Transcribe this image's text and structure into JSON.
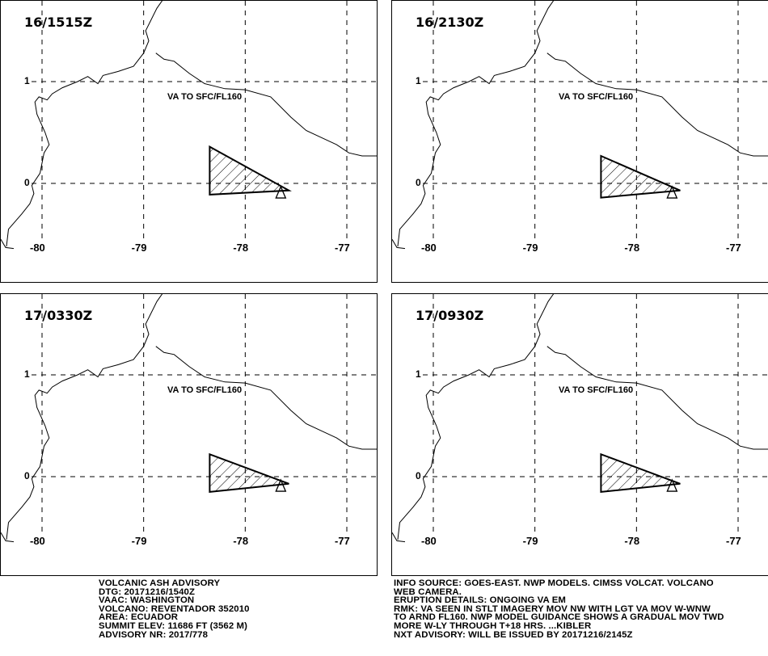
{
  "panels": [
    {
      "time": "16/1515Z",
      "va_label": "VA TO SFC/FL160",
      "polygon": [
        [
          -78.35,
          0.36
        ],
        [
          -77.57,
          -0.07
        ],
        [
          -78.35,
          -0.11
        ]
      ]
    },
    {
      "time": "16/2130Z",
      "va_label": "VA TO SFC/FL160",
      "polygon": [
        [
          -78.35,
          0.27
        ],
        [
          -77.57,
          -0.07
        ],
        [
          -78.35,
          -0.14
        ]
      ]
    },
    {
      "time": "17/0330Z",
      "va_label": "VA TO SFC/FL160",
      "polygon": [
        [
          -78.35,
          0.22
        ],
        [
          -77.57,
          -0.07
        ],
        [
          -78.35,
          -0.15
        ]
      ]
    },
    {
      "time": "17/0930Z",
      "va_label": "VA TO SFC/FL160",
      "polygon": [
        [
          -78.35,
          0.22
        ],
        [
          -77.57,
          -0.07
        ],
        [
          -78.35,
          -0.15
        ]
      ]
    }
  ],
  "map": {
    "lon_ticks": [
      "-80",
      "-79",
      "-78",
      "-77"
    ],
    "lat_ticks": [
      "1",
      "0"
    ],
    "volcano": {
      "lon": -77.65,
      "lat": -0.08
    },
    "coastline": [
      [
        -80.35,
        -0.62
      ],
      [
        -80.33,
        -0.45
      ],
      [
        -80.2,
        -0.3
      ],
      [
        -80.12,
        -0.2
      ],
      [
        -80.08,
        -0.1
      ],
      [
        -80.1,
        -0.02
      ],
      [
        -80.02,
        0.1
      ],
      [
        -79.98,
        0.3
      ],
      [
        -79.93,
        0.38
      ],
      [
        -79.97,
        0.5
      ],
      [
        -80.05,
        0.68
      ],
      [
        -80.07,
        0.8
      ],
      [
        -80.03,
        0.85
      ],
      [
        -79.95,
        0.82
      ],
      [
        -79.9,
        0.88
      ],
      [
        -79.8,
        0.94
      ],
      [
        -79.65,
        1.0
      ],
      [
        -79.55,
        1.05
      ],
      [
        -79.45,
        0.98
      ],
      [
        -79.4,
        1.06
      ],
      [
        -79.25,
        1.1
      ],
      [
        -79.1,
        1.15
      ],
      [
        -79.0,
        1.28
      ],
      [
        -78.95,
        1.4
      ],
      [
        -78.98,
        1.5
      ],
      [
        -78.93,
        1.6
      ],
      [
        -78.87,
        1.72
      ],
      [
        -78.8,
        1.82
      ],
      [
        -78.82,
        1.98
      ]
    ],
    "border": [
      [
        -78.88,
        1.28
      ],
      [
        -78.8,
        1.22
      ],
      [
        -78.7,
        1.2
      ],
      [
        -78.55,
        1.08
      ],
      [
        -78.4,
        0.98
      ],
      [
        -78.2,
        0.93
      ],
      [
        -78.0,
        0.92
      ],
      [
        -77.75,
        0.85
      ],
      [
        -77.55,
        0.65
      ],
      [
        -77.4,
        0.52
      ],
      [
        -77.25,
        0.45
      ],
      [
        -77.1,
        0.38
      ],
      [
        -76.98,
        0.3
      ],
      [
        -76.85,
        0.27
      ],
      [
        -76.7,
        0.27
      ],
      [
        -76.55,
        0.3
      ],
      [
        -76.36,
        0.29
      ]
    ]
  },
  "advisory": {
    "left": [
      "VOLCANIC ASH ADVISORY",
      "DTG: 20171216/1540Z",
      "VAAC: WASHINGTON",
      "VOLCANO: REVENTADOR 352010",
      "AREA: ECUADOR",
      "SUMMIT ELEV: 11686 FT (3562 M)",
      "ADVISORY NR: 2017/778"
    ],
    "right": [
      "INFO SOURCE: GOES-EAST. NWP MODELS. CIMSS VOLCAT. VOLCANO",
      "WEB CAMERA.",
      "ERUPTION DETAILS: ONGOING VA EM",
      "RMK: VA SEEN IN STLT IMAGERY MOV NW WITH LGT VA MOV W-WNW",
      "TO ARND FL160. NWP MODEL GUIDANCE SHOWS A GRADUAL MOV TWD",
      "MORE W-LY THROUGH T+18 HRS. ...KIBLER",
      "NXT ADVISORY: WILL BE ISSUED BY 20171216/2145Z"
    ]
  }
}
